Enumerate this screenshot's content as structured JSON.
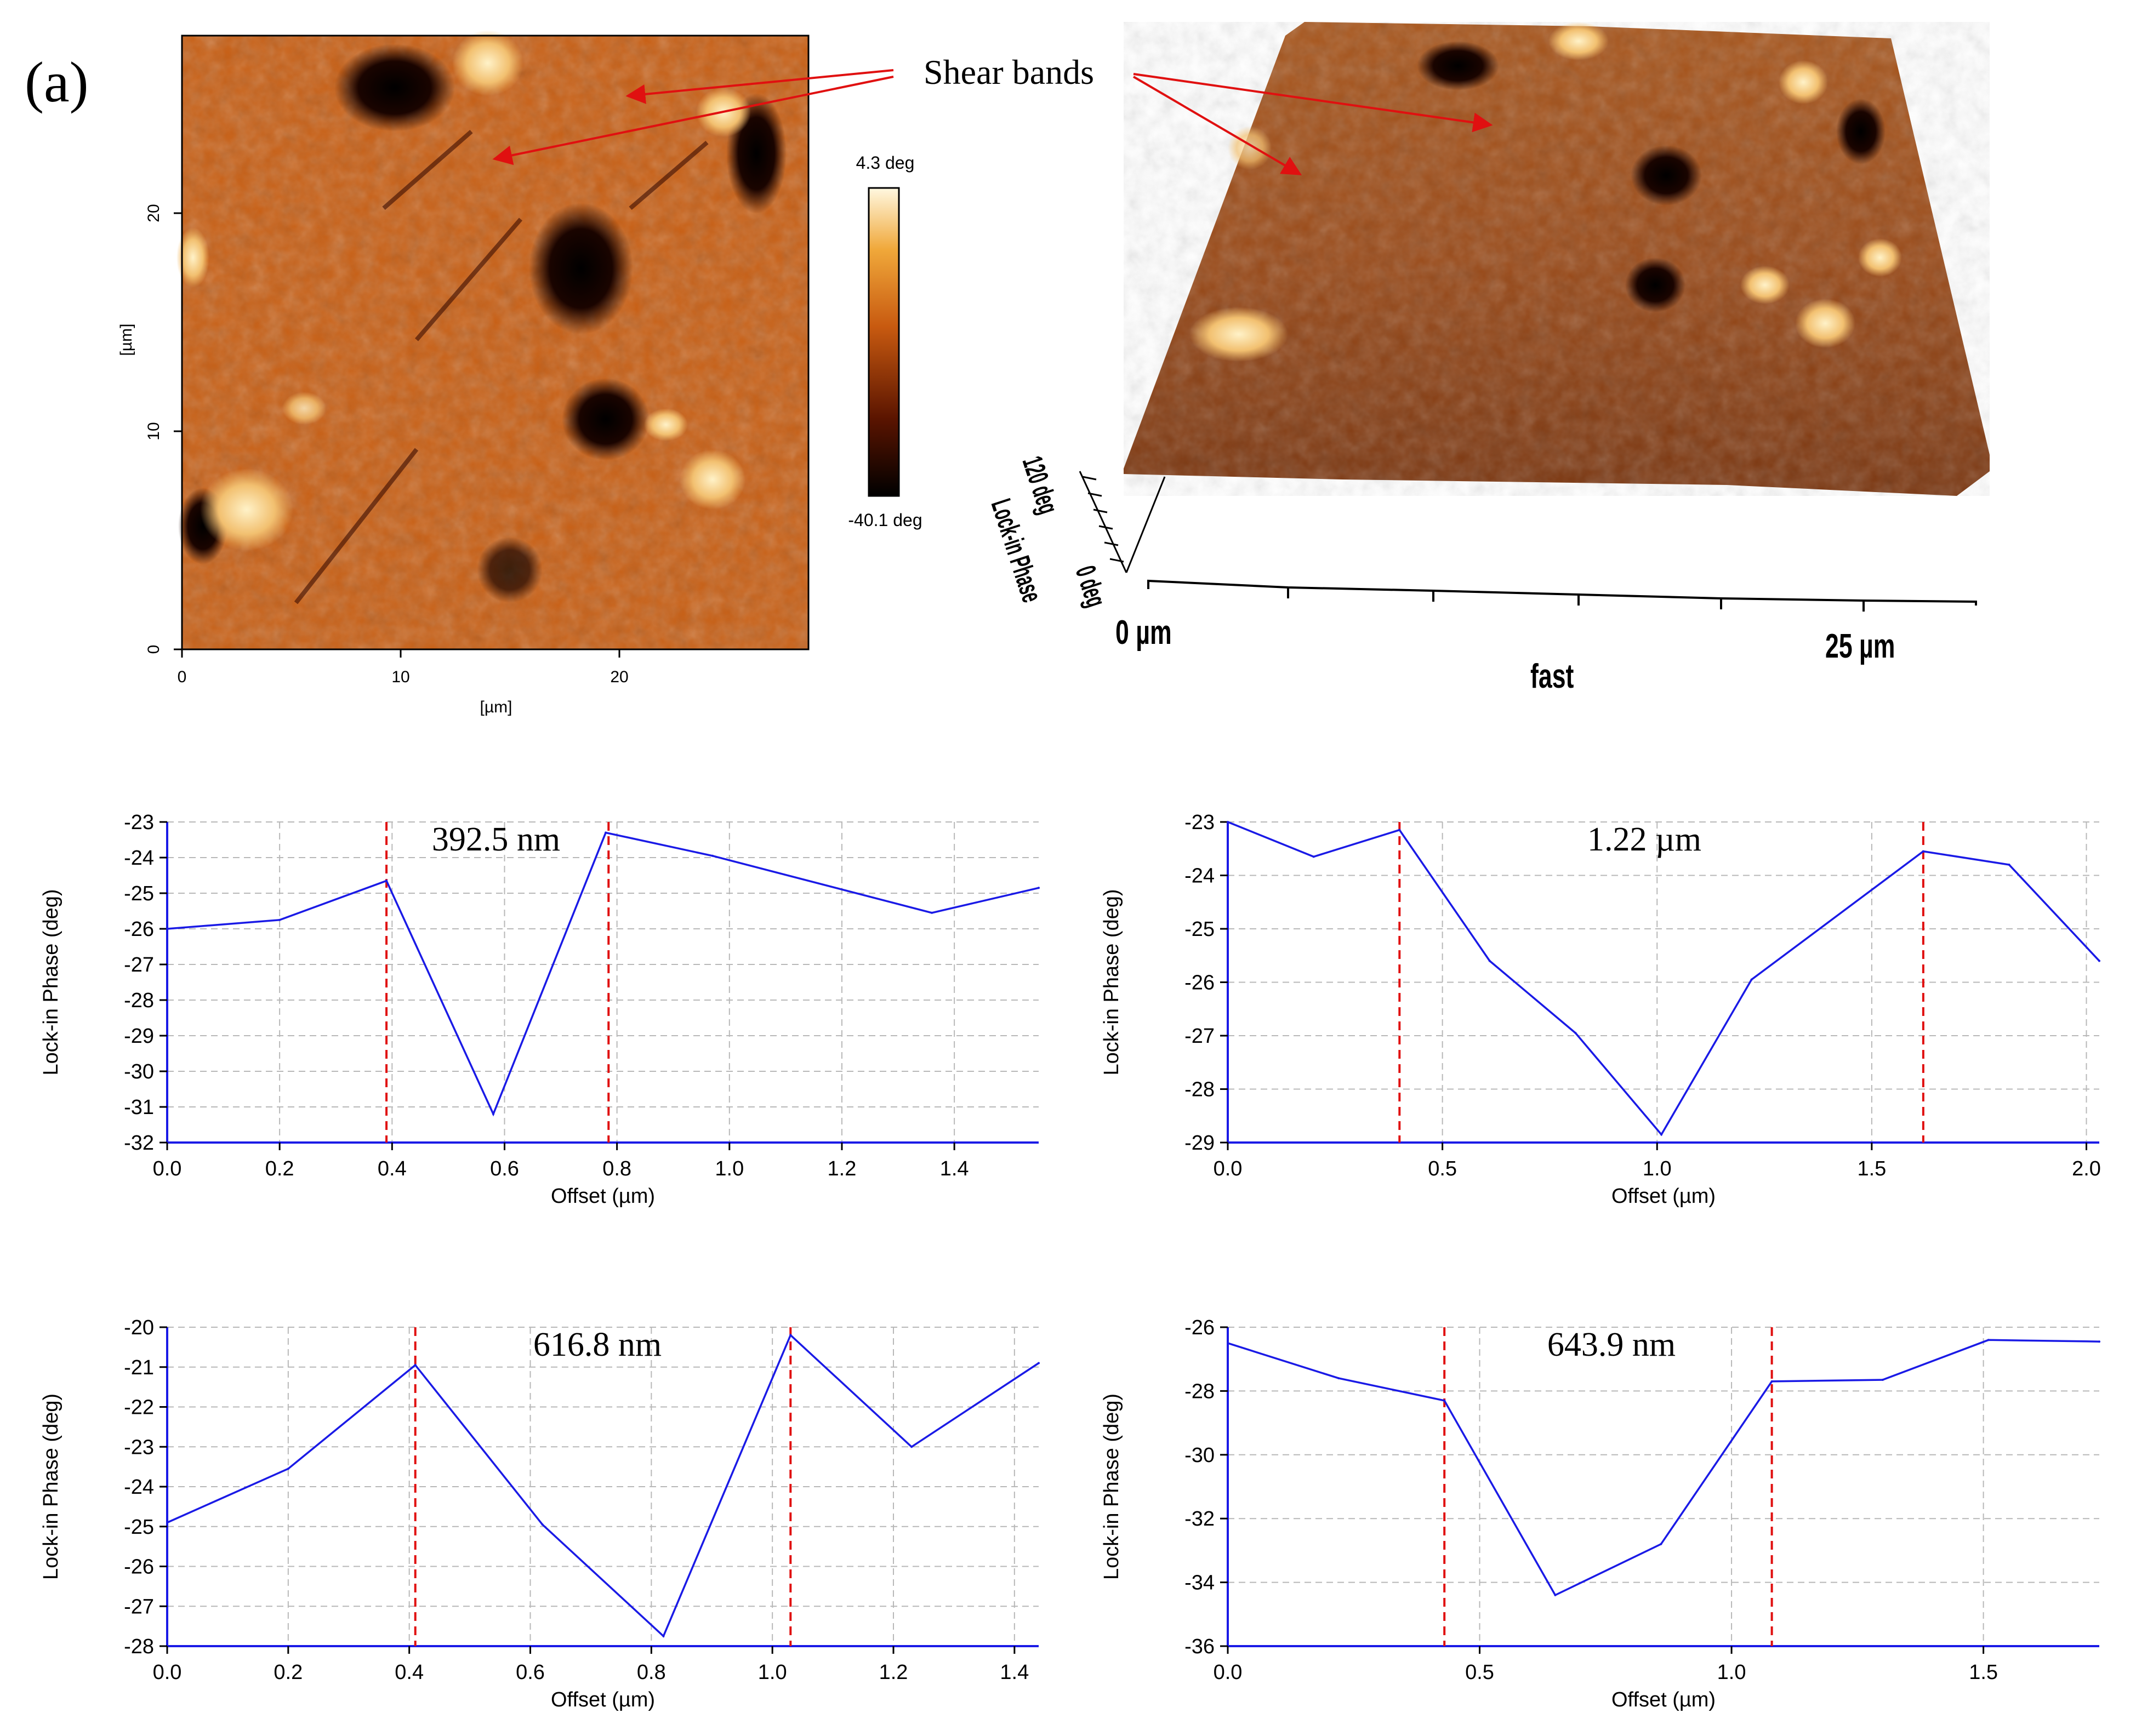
{
  "figure": {
    "panel_label": "(a)",
    "annotation": "Shear bands"
  },
  "afm_2d": {
    "x_unit": "[µm]",
    "y_unit": "[µm]",
    "x_ticks": [
      "0",
      "10",
      "20"
    ],
    "y_ticks": [
      "0",
      "10",
      "20"
    ],
    "colorbar_max": "4.3 deg",
    "colorbar_min": "-40.1 deg",
    "colors": [
      "#000000",
      "#3a0800",
      "#8a2800",
      "#c85a10",
      "#e8941c",
      "#f7c86a",
      "#fff6dc"
    ]
  },
  "afm_3d": {
    "z_range": "120 deg",
    "z_label": "Lock-in Phase",
    "z_zero": "0 deg",
    "x_start": "0 µm",
    "x_end": "25 µm",
    "x_axis": "fast"
  },
  "chart_data": [
    {
      "type": "line",
      "id": "p1",
      "annotation": "392.5 nm",
      "xlabel": "Offset (µm)",
      "ylabel": "Lock-in Phase (deg)",
      "xlim": [
        0,
        1.55
      ],
      "ylim": [
        -32,
        -23
      ],
      "xticks": [
        0.0,
        0.2,
        0.4,
        0.6,
        0.8,
        1.0,
        1.2,
        1.4
      ],
      "xtick_labels": [
        "0.0",
        "0.2",
        "0.4",
        "0.6",
        "0.8",
        "1.0",
        "1.2",
        "1.4"
      ],
      "yticks": [
        -23,
        -24,
        -25,
        -26,
        -27,
        -28,
        -29,
        -30,
        -31,
        -32
      ],
      "ytick_labels": [
        "-23",
        "-24",
        "-25",
        "-26",
        "-27",
        "-28",
        "-29",
        "-30",
        "-31",
        "-32"
      ],
      "x": [
        0.0,
        0.2,
        0.39,
        0.58,
        0.78,
        0.97,
        1.36,
        1.55
      ],
      "y": [
        -26.0,
        -25.75,
        -24.65,
        -31.2,
        -23.3,
        -23.95,
        -25.55,
        -24.85
      ],
      "markers": [
        0.39,
        0.785
      ]
    },
    {
      "type": "line",
      "id": "p2",
      "annotation": "1.22 µm",
      "xlabel": "Offset (µm)",
      "ylabel": "Lock-in Phase (deg)",
      "xlim": [
        0,
        2.03
      ],
      "ylim": [
        -29,
        -23
      ],
      "xticks": [
        0.0,
        0.5,
        1.0,
        1.5,
        2.0
      ],
      "xtick_labels": [
        "0.0",
        "0.5",
        "1.0",
        "1.5",
        "2.0"
      ],
      "yticks": [
        -23,
        -24,
        -25,
        -26,
        -27,
        -28,
        -29
      ],
      "ytick_labels": [
        "-23",
        "-24",
        "-25",
        "-26",
        "-27",
        "-28",
        "-29"
      ],
      "x": [
        0.0,
        0.2,
        0.4,
        0.61,
        0.81,
        1.01,
        1.22,
        1.62,
        1.82,
        2.03
      ],
      "y": [
        -23.0,
        -23.65,
        -23.15,
        -25.6,
        -26.95,
        -28.85,
        -25.95,
        -23.55,
        -23.8,
        -25.6
      ],
      "markers": [
        0.4,
        1.62
      ]
    },
    {
      "type": "line",
      "id": "p3",
      "annotation": "616.8 nm",
      "xlabel": "Offset (µm)",
      "ylabel": "Lock-in Phase (deg)",
      "xlim": [
        0,
        1.44
      ],
      "ylim": [
        -28,
        -20
      ],
      "xticks": [
        0.0,
        0.2,
        0.4,
        0.6,
        0.8,
        1.0,
        1.2,
        1.4
      ],
      "xtick_labels": [
        "0.0",
        "0.2",
        "0.4",
        "0.6",
        "0.8",
        "1.0",
        "1.2",
        "1.4"
      ],
      "yticks": [
        -20,
        -21,
        -22,
        -23,
        -24,
        -25,
        -26,
        -27,
        -28
      ],
      "ytick_labels": [
        "-20",
        "-21",
        "-22",
        "-23",
        "-24",
        "-25",
        "-26",
        "-27",
        "-28"
      ],
      "x": [
        0.0,
        0.2,
        0.41,
        0.62,
        0.82,
        1.03,
        1.23,
        1.44
      ],
      "y": [
        -24.9,
        -23.55,
        -20.95,
        -24.95,
        -27.75,
        -20.2,
        -23.0,
        -20.9
      ],
      "markers": [
        0.41,
        1.03
      ]
    },
    {
      "type": "line",
      "id": "p4",
      "annotation": "643.9 nm",
      "xlabel": "Offset (µm)",
      "ylabel": "Lock-in Phase (deg)",
      "xlim": [
        0,
        1.73
      ],
      "ylim": [
        -36,
        -26
      ],
      "xticks": [
        0.0,
        0.5,
        1.0,
        1.5
      ],
      "xtick_labels": [
        "0.0",
        "0.5",
        "1.0",
        "1.5"
      ],
      "yticks": [
        -26,
        -28,
        -30,
        -32,
        -34,
        -36
      ],
      "ytick_labels": [
        "-26",
        "-28",
        "-30",
        "-32",
        "-34",
        "-36"
      ],
      "x": [
        0.0,
        0.22,
        0.43,
        0.65,
        0.86,
        1.08,
        1.3,
        1.51,
        1.73
      ],
      "y": [
        -26.5,
        -27.6,
        -28.3,
        -34.4,
        -32.8,
        -27.7,
        -27.65,
        -26.4,
        -26.45
      ],
      "markers": [
        0.43,
        1.08
      ]
    }
  ]
}
